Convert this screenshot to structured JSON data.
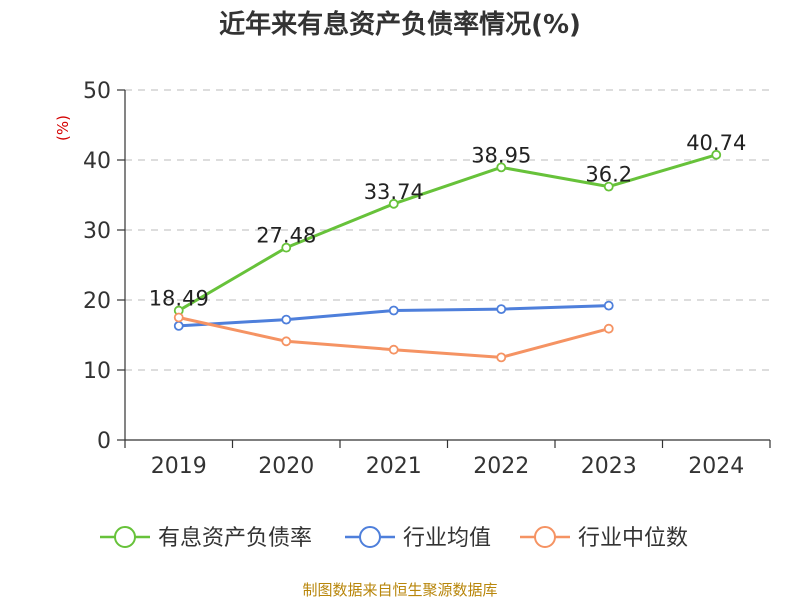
{
  "chart_data": {
    "type": "line",
    "title": "近年来有息资产负债率情况(%)",
    "unit_label": "(%)",
    "categories": [
      "2019",
      "2020",
      "2021",
      "2022",
      "2023",
      "2024"
    ],
    "ylim": [
      0,
      50
    ],
    "yticks": [
      0,
      10,
      20,
      30,
      40,
      50
    ],
    "grid": true,
    "legend_position": "bottom",
    "series": [
      {
        "name": "有息资产负债率",
        "color": "#67c23a",
        "values": [
          18.49,
          27.48,
          33.74,
          38.95,
          36.2,
          40.74
        ],
        "labels": [
          "18.49",
          "27.48",
          "33.74",
          "38.95",
          "36.2",
          "40.74"
        ],
        "show_labels": true
      },
      {
        "name": "行业均值",
        "color": "#4e7fdb",
        "values": [
          16.3,
          17.2,
          18.5,
          18.7,
          19.2,
          null
        ],
        "show_labels": false
      },
      {
        "name": "行业中位数",
        "color": "#f59363",
        "values": [
          17.5,
          14.1,
          12.9,
          11.8,
          15.9,
          null
        ],
        "show_labels": false
      }
    ],
    "source": "制图数据来自恒生聚源数据库"
  }
}
